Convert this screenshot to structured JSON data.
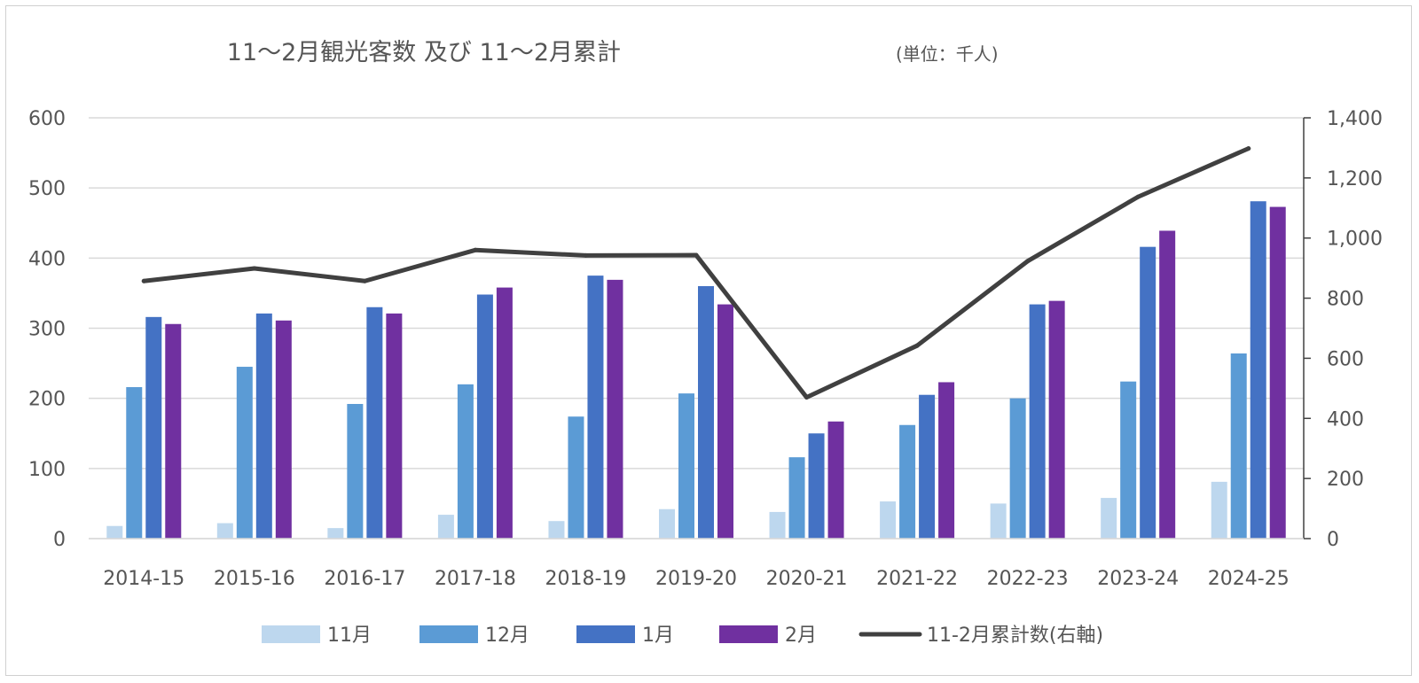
{
  "chart_data": {
    "type": "bar",
    "title": "11～2月観光客数 及び 11～2月累計",
    "subtitle": "(単位：千人)",
    "xlabel": "",
    "ylabel": "",
    "categories": [
      "2014-15",
      "2015-16",
      "2016-17",
      "2017-18",
      "2018-19",
      "2019-20",
      "2020-21",
      "2021-22",
      "2022-23",
      "2023-24",
      "2024-25"
    ],
    "series": [
      {
        "name": "11月",
        "type": "bar",
        "axis": "left",
        "color": "#BDD7EE",
        "values": [
          18,
          22,
          15,
          34,
          25,
          42,
          38,
          53,
          50,
          58,
          81
        ]
      },
      {
        "name": "12月",
        "type": "bar",
        "axis": "left",
        "color": "#5B9BD5",
        "values": [
          216,
          245,
          192,
          220,
          174,
          207,
          116,
          162,
          200,
          224,
          264
        ]
      },
      {
        "name": "1月",
        "type": "bar",
        "axis": "left",
        "color": "#4472C4",
        "values": [
          316,
          321,
          330,
          348,
          375,
          360,
          150,
          205,
          334,
          416,
          481
        ]
      },
      {
        "name": "2月",
        "type": "bar",
        "axis": "left",
        "color": "#7030A0",
        "values": [
          306,
          311,
          321,
          358,
          369,
          334,
          167,
          223,
          339,
          439,
          473
        ]
      },
      {
        "name": "11-2月累計数(右軸)",
        "type": "line",
        "axis": "right",
        "color": "#404040",
        "values": [
          857,
          899,
          857,
          960,
          942,
          943,
          470,
          642,
          923,
          1137,
          1298
        ]
      }
    ],
    "ylim": [
      0,
      600
    ],
    "yticks": [
      "0",
      "100",
      "200",
      "300",
      "400",
      "500",
      "600"
    ],
    "y2lim": [
      0,
      1400
    ],
    "y2ticks": [
      "0",
      "200",
      "400",
      "600",
      "800",
      "1,000",
      "1,200",
      "1,400"
    ],
    "grid": true,
    "legend": "bottom"
  }
}
